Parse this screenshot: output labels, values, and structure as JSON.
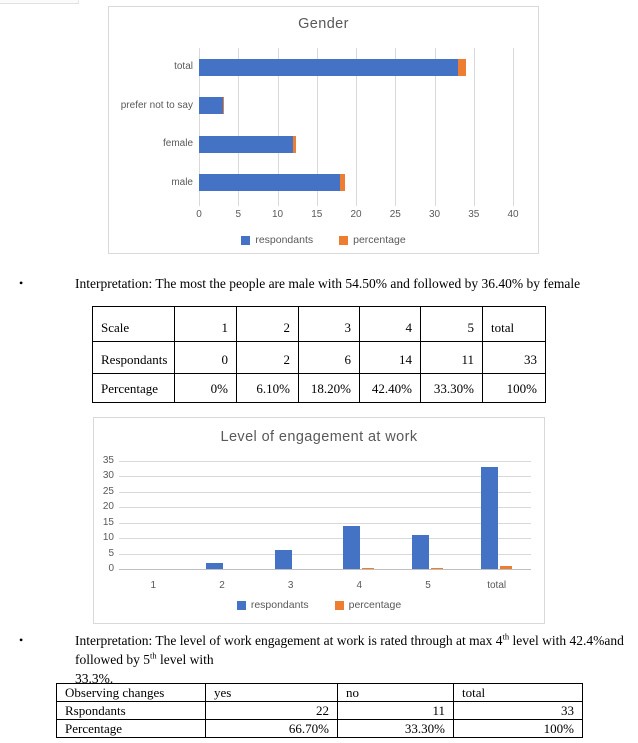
{
  "document": {
    "bullets": [
      {
        "lines": [
          [
            {
              "t": "Interpretation: The most the people are male with 54.50% and followed by 36.40% by female"
            }
          ]
        ]
      },
      {
        "lines": [
          [
            {
              "t": "Interpretation: The level of work engagement at work is rated through at max 4"
            },
            {
              "sup": "th"
            },
            {
              "t": " level with 42.4%and followed by 5"
            },
            {
              "sup": "th"
            },
            {
              "t": " level with"
            }
          ],
          [
            {
              "t": "33.3%."
            }
          ]
        ]
      }
    ]
  },
  "chart_data": [
    {
      "type": "bar",
      "orientation": "horizontal",
      "stacked": true,
      "title": "Gender",
      "categories": [
        "male",
        "female",
        "prefer not to say",
        "total"
      ],
      "series": [
        {
          "name": "respondants",
          "color": "#4472C4",
          "values": [
            18,
            12,
            3,
            33
          ]
        },
        {
          "name": "percentage",
          "color": "#ED7D31",
          "values": [
            0.545,
            0.364,
            0.091,
            1.0
          ]
        }
      ],
      "xlim": [
        0,
        40
      ],
      "xticks": [
        0,
        5,
        10,
        15,
        20,
        25,
        30,
        35,
        40
      ],
      "grid": true,
      "legend_position": "bottom",
      "text_color": "#595959",
      "grid_color": "#d9d9d9"
    },
    {
      "type": "bar",
      "orientation": "vertical",
      "stacked": false,
      "title": "Level of engagement at work",
      "categories": [
        "1",
        "2",
        "3",
        "4",
        "5",
        "total"
      ],
      "series": [
        {
          "name": "respondants",
          "color": "#4472C4",
          "values": [
            0,
            2,
            6,
            14,
            11,
            33
          ]
        },
        {
          "name": "percentage",
          "color": "#ED7D31",
          "values": [
            0,
            0.061,
            0.182,
            0.424,
            0.333,
            1.0
          ]
        }
      ],
      "ylim": [
        0,
        35
      ],
      "yticks": [
        0,
        5,
        10,
        15,
        20,
        25,
        30,
        35
      ],
      "grid": true,
      "legend_position": "bottom",
      "text_color": "#595959",
      "grid_color": "#d9d9d9"
    }
  ],
  "tables": [
    {
      "name": "engagement-scale-table",
      "rows": [
        [
          "Scale",
          "1",
          "2",
          "3",
          "4",
          "5",
          "total"
        ],
        [
          "Respondants",
          "0",
          "2",
          "6",
          "14",
          "11",
          "33"
        ],
        [
          "Percentage",
          "0%",
          "6.10%",
          "18.20%",
          "42.40%",
          "33.30%",
          "100%"
        ]
      ],
      "align": [
        [
          "l",
          "r",
          "r",
          "r",
          "r",
          "r",
          "l"
        ],
        [
          "l",
          "r",
          "r",
          "r",
          "r",
          "r",
          "r"
        ],
        [
          "l",
          "r",
          "r",
          "r",
          "r",
          "r",
          "r"
        ]
      ]
    },
    {
      "name": "observing-changes-table",
      "rows": [
        [
          "Observing changes",
          "yes",
          "no",
          "total"
        ],
        [
          "Rspondants",
          "22",
          "11",
          "33"
        ],
        [
          "Percentage",
          "66.70%",
          "33.30%",
          "100%"
        ]
      ],
      "align": [
        [
          "l",
          "l",
          "l",
          "l"
        ],
        [
          "l",
          "r",
          "r",
          "r"
        ],
        [
          "l",
          "r",
          "r",
          "r"
        ]
      ]
    }
  ]
}
